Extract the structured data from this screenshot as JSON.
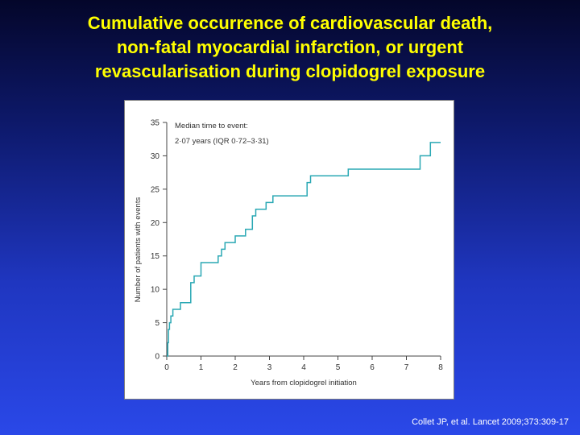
{
  "slide": {
    "title_lines": [
      "Cumulative occurrence of cardiovascular death,",
      "non-fatal myocardial infarction, or urgent",
      "revascularisation during clopidogrel exposure"
    ],
    "citation": "Collet JP, et al. Lancet 2009;373:309-17"
  },
  "chart_data": {
    "type": "line",
    "title": "",
    "xlabel": "Years from clopidogrel initiation",
    "ylabel": "Number of patients with events",
    "xlim": [
      0,
      8
    ],
    "ylim": [
      0,
      35
    ],
    "x_ticks": [
      0,
      1,
      2,
      3,
      4,
      5,
      6,
      7,
      8
    ],
    "y_ticks": [
      0,
      5,
      10,
      15,
      20,
      25,
      30,
      35
    ],
    "x_tick_labels": [
      "0",
      "1",
      "2",
      "3",
      "4",
      "5",
      "6",
      "7",
      "8"
    ],
    "y_tick_labels": [
      "0",
      "5",
      "10",
      "15",
      "20",
      "25",
      "30",
      "35"
    ],
    "grid": false,
    "annotation": [
      "Median time to event:",
      "2·07 years (IQR 0·72–3·31)"
    ],
    "line_color": "#2aa8b4",
    "series": [
      {
        "step": true,
        "x": [
          0,
          0.03,
          0.05,
          0.08,
          0.12,
          0.18,
          0.25,
          0.4,
          0.45,
          0.55,
          0.7,
          0.8,
          0.85,
          1.0,
          1.05,
          1.1,
          1.2,
          1.3,
          1.4,
          1.5,
          1.6,
          1.7,
          1.8,
          1.9,
          2.0,
          2.1,
          2.3,
          2.4,
          2.5,
          2.6,
          2.75,
          2.9,
          3.1,
          3.2,
          3.4,
          3.5,
          3.6,
          3.7,
          4.1,
          4.2,
          4.3,
          4.4,
          4.5,
          4.6,
          4.8,
          5.0,
          5.3,
          5.6,
          5.9,
          6.2,
          6.5,
          6.8,
          7.3,
          7.4,
          7.5,
          7.6,
          7.7,
          7.8,
          7.9,
          8.0
        ],
        "y": [
          0,
          2,
          4,
          5,
          6,
          7,
          7,
          8,
          8,
          8,
          11,
          12,
          12,
          14,
          14,
          14,
          14,
          14,
          14,
          15,
          16,
          17,
          17,
          17,
          18,
          18,
          19,
          19,
          21,
          22,
          22,
          23,
          24,
          24,
          24,
          24,
          24,
          24,
          26,
          27,
          27,
          27,
          27,
          27,
          27,
          27,
          28,
          28,
          28,
          28,
          28,
          28,
          28,
          30,
          30,
          30,
          32,
          32,
          32,
          32
        ]
      }
    ]
  }
}
